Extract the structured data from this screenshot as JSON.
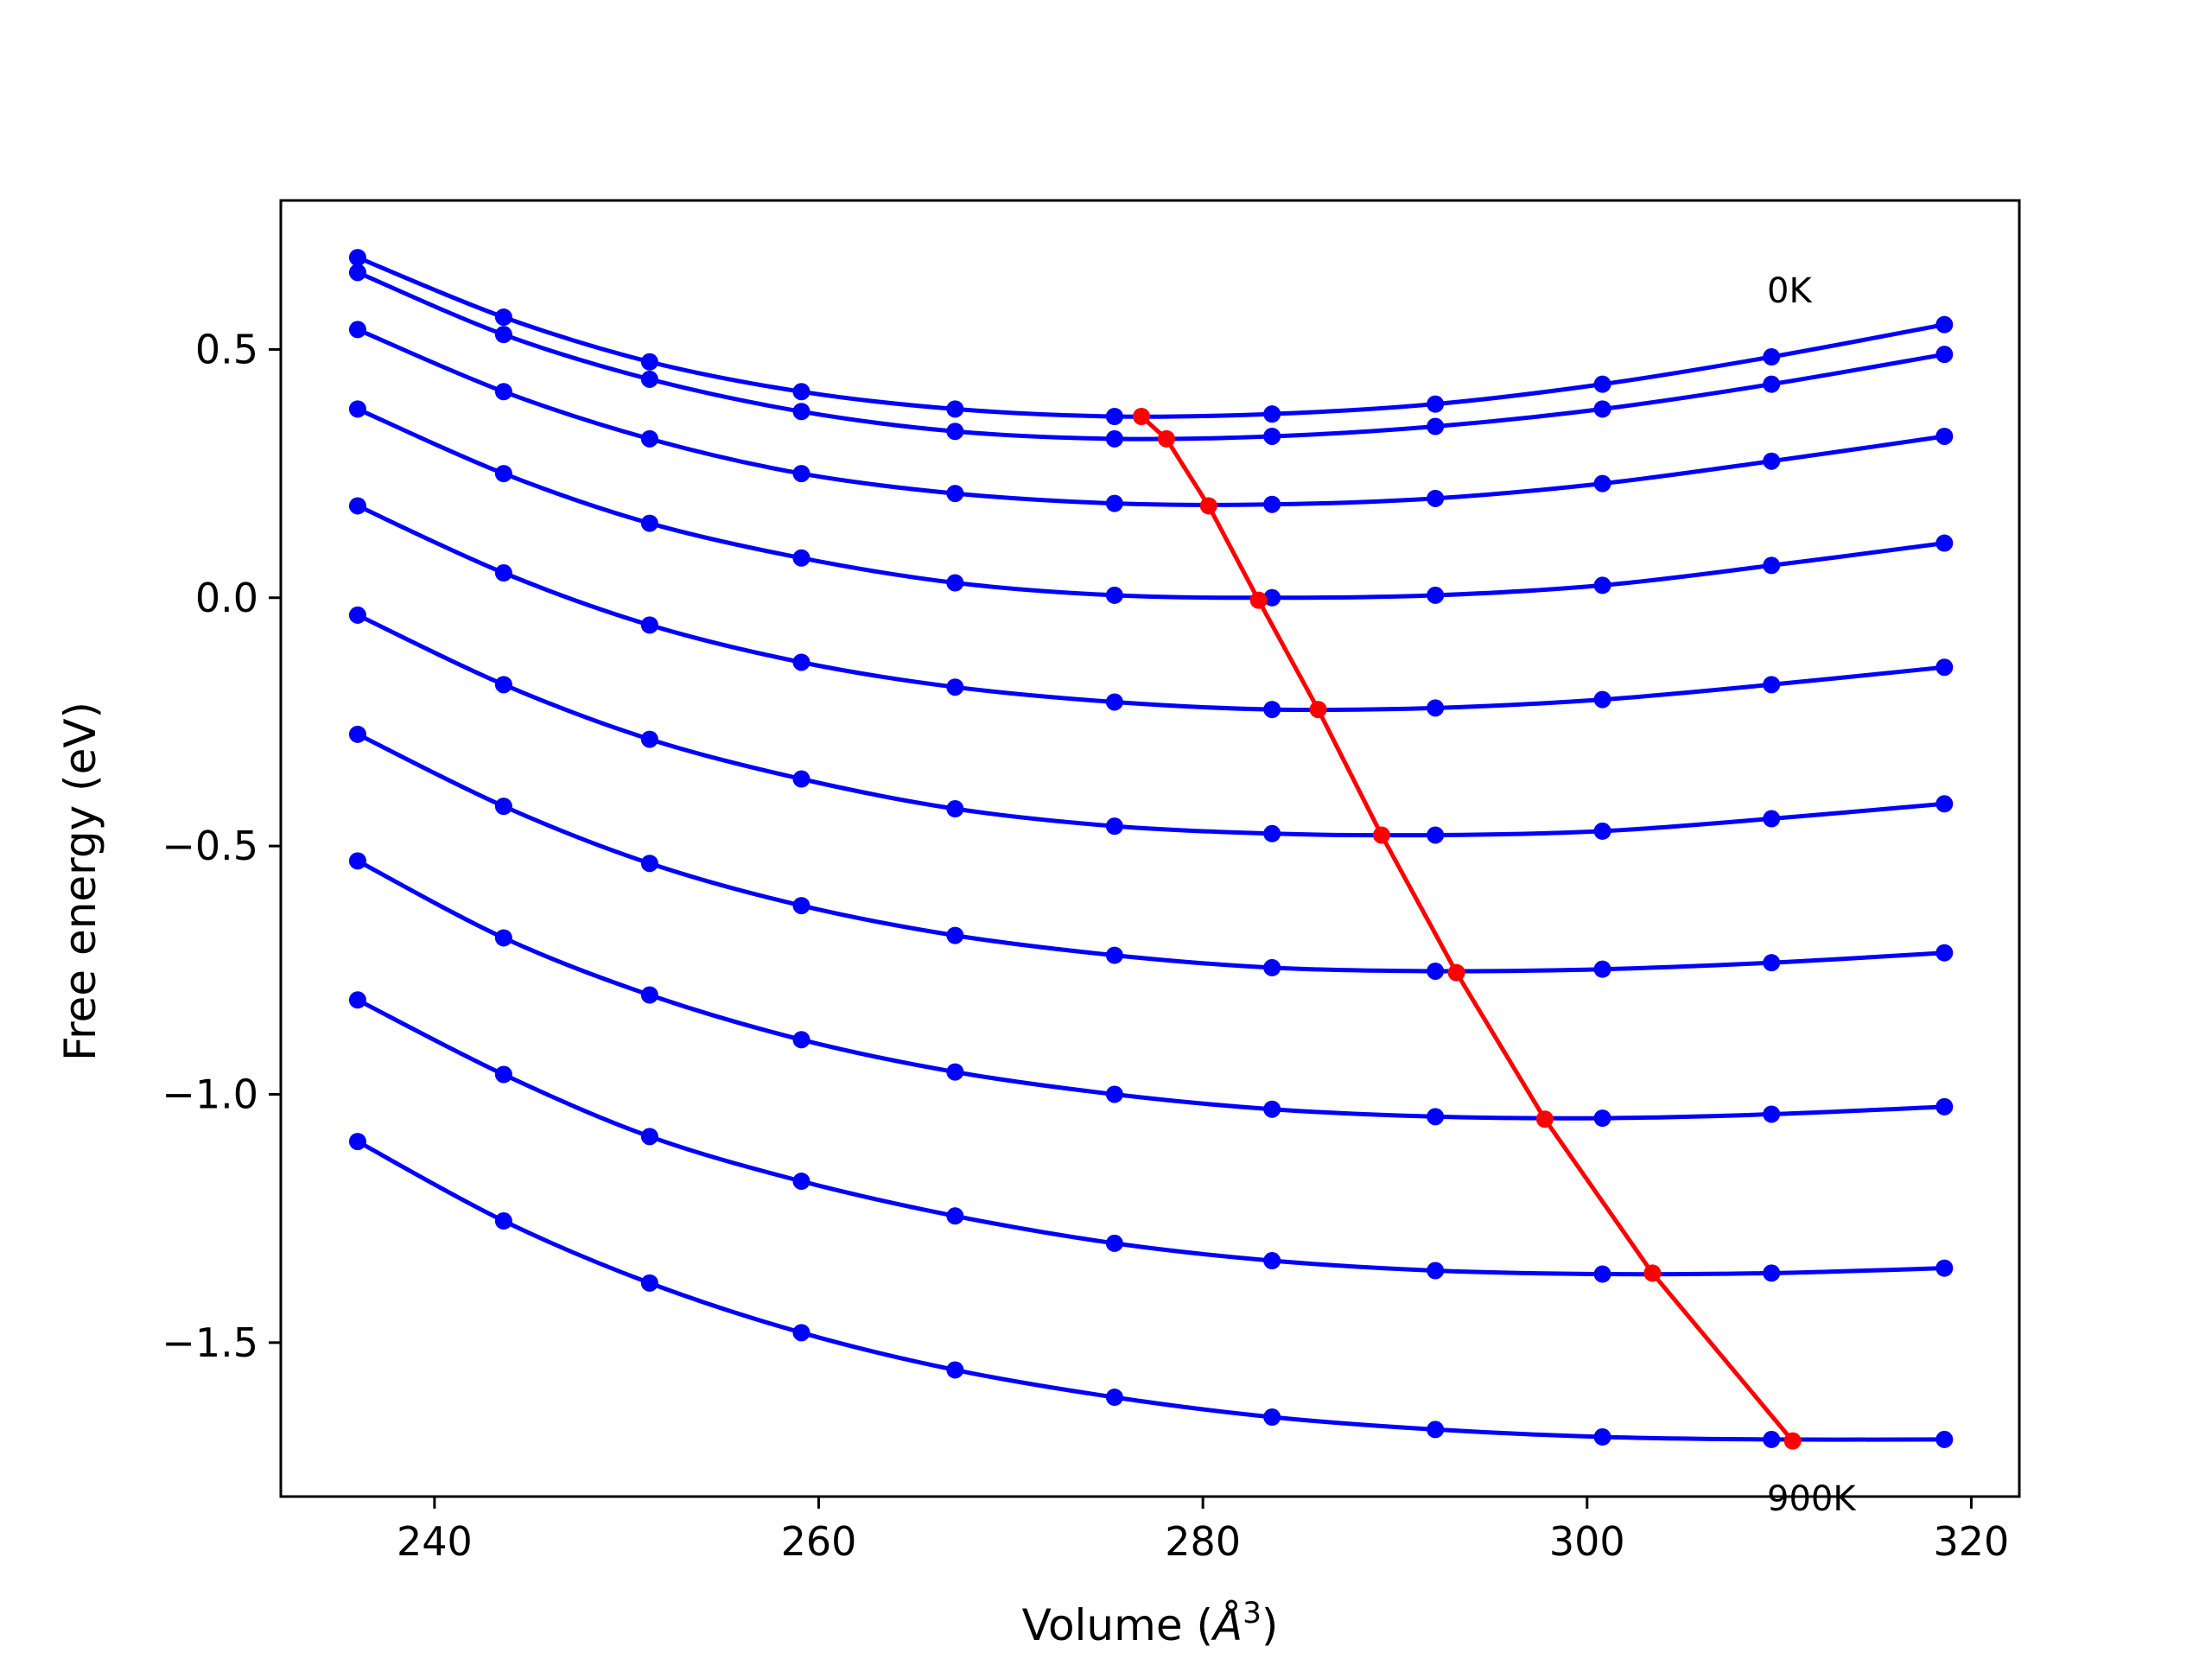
{
  "chart_data": {
    "type": "line",
    "xlabel_main": "Volume (",
    "xlabel_unit": "Å",
    "xlabel_exp": "3",
    "xlabel_close": ")",
    "ylabel": "Free energy (eV)",
    "xlim": [
      232.0,
      322.5
    ],
    "ylim": [
      -1.81,
      0.8
    ],
    "x_ticks": [
      240,
      260,
      280,
      300,
      320
    ],
    "y_ticks": [
      0.5,
      0.0,
      -0.5,
      -1.0,
      -1.5
    ],
    "x_tick_labels": [
      "240",
      "260",
      "280",
      "300",
      "320"
    ],
    "y_tick_labels": [
      "0.5",
      "0.0",
      "−0.5",
      "−1.0",
      "−1.5"
    ],
    "grid": false,
    "annotations": [
      {
        "text": "0K",
        "x": 309.8,
        "y": 0.6
      },
      {
        "text": "900K",
        "x": 309.8,
        "y": -1.8
      }
    ],
    "colors": {
      "curves": "#0000ff",
      "minimum_line": "#ff0000",
      "axes": "#000000"
    },
    "x": [
      236.0,
      243.6,
      251.2,
      259.1,
      267.1,
      275.4,
      283.6,
      292.1,
      300.8,
      309.6,
      318.6
    ],
    "series": [
      {
        "values": [
          0.685,
          0.565,
          0.475,
          0.415,
          0.38,
          0.365,
          0.37,
          0.39,
          0.43,
          0.485,
          0.55
        ]
      },
      {
        "values": [
          0.655,
          0.53,
          0.44,
          0.375,
          0.335,
          0.32,
          0.325,
          0.345,
          0.38,
          0.43,
          0.49
        ]
      },
      {
        "values": [
          0.54,
          0.415,
          0.32,
          0.25,
          0.21,
          0.19,
          0.188,
          0.2,
          0.23,
          0.275,
          0.325
        ]
      },
      {
        "values": [
          0.38,
          0.25,
          0.15,
          0.08,
          0.03,
          0.005,
          0.0,
          0.005,
          0.025,
          0.065,
          0.11
        ]
      },
      {
        "values": [
          0.185,
          0.05,
          -0.055,
          -0.13,
          -0.18,
          -0.21,
          -0.225,
          -0.222,
          -0.205,
          -0.175,
          -0.14
        ]
      },
      {
        "values": [
          -0.035,
          -0.175,
          -0.285,
          -0.365,
          -0.425,
          -0.46,
          -0.475,
          -0.478,
          -0.47,
          -0.445,
          -0.415
        ]
      },
      {
        "values": [
          -0.275,
          -0.42,
          -0.535,
          -0.62,
          -0.68,
          -0.72,
          -0.745,
          -0.752,
          -0.748,
          -0.735,
          -0.715
        ]
      },
      {
        "values": [
          -0.53,
          -0.685,
          -0.8,
          -0.89,
          -0.955,
          -1.0,
          -1.03,
          -1.045,
          -1.048,
          -1.04,
          -1.025
        ]
      },
      {
        "values": [
          -0.81,
          -0.96,
          -1.085,
          -1.175,
          -1.245,
          -1.3,
          -1.335,
          -1.355,
          -1.362,
          -1.36,
          -1.35
        ]
      },
      {
        "values": [
          -1.095,
          -1.255,
          -1.38,
          -1.48,
          -1.555,
          -1.61,
          -1.65,
          -1.675,
          -1.69,
          -1.695,
          -1.695
        ]
      }
    ],
    "minimum_line": {
      "x": [
        276.8,
        278.1,
        280.3,
        282.9,
        286.0,
        289.3,
        293.2,
        297.8,
        303.4,
        310.7
      ],
      "y": [
        0.365,
        0.32,
        0.185,
        -0.005,
        -0.225,
        -0.478,
        -0.755,
        -1.05,
        -1.36,
        -1.698
      ]
    }
  }
}
